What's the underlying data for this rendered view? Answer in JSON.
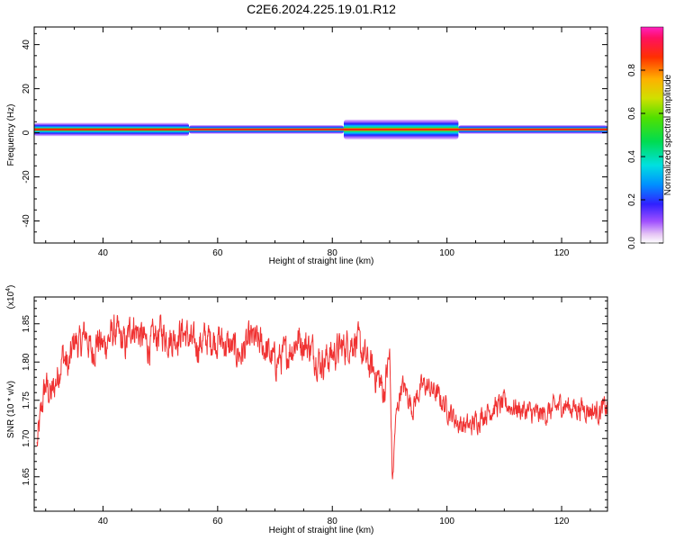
{
  "title": "C2E6.2024.225.19.01.R12",
  "chart_data": [
    {
      "type": "heatmap",
      "xlabel": "Height of straight line (km)",
      "ylabel": "Frequency (Hz)",
      "xlim": [
        28,
        128
      ],
      "ylim": [
        -50,
        48
      ],
      "xticks": [
        40,
        60,
        80,
        100,
        120
      ],
      "yticks": [
        -40,
        -20,
        0,
        20,
        40
      ],
      "colorbar": {
        "label": "Normalized spectral amplitude",
        "range": [
          0,
          1
        ],
        "ticks": [
          "0.0",
          "0.2",
          "0.4",
          "0.6",
          "0.8"
        ],
        "ticks_values": [
          0.0,
          0.2,
          0.4,
          0.6,
          0.8
        ]
      },
      "band": {
        "center_hz": 1.5,
        "description_segments": [
          {
            "from": 28,
            "to": 55,
            "halfwidth_hz": 3
          },
          {
            "from": 55,
            "to": 82,
            "halfwidth_hz": 2
          },
          {
            "from": 82,
            "to": 102,
            "halfwidth_hz": 4.5
          },
          {
            "from": 102,
            "to": 128,
            "halfwidth_hz": 2
          }
        ]
      }
    },
    {
      "type": "line",
      "xlabel": "Height of straight line (km)",
      "ylabel": "SNR (10 * v/v)",
      "y_multiplier": "(x10⁴)",
      "y_multiplier_base": "(x10",
      "y_multiplier_exp": "4",
      "y_multiplier_close": ")",
      "xlim": [
        28,
        128
      ],
      "ylim": [
        1.605,
        1.885
      ],
      "xticks": [
        40,
        60,
        80,
        100,
        120
      ],
      "yticks": [
        1.65,
        1.7,
        1.75,
        1.8,
        1.85
      ],
      "yticklabels": [
        "1.65",
        "1.70",
        "1.75",
        "1.80",
        "1.85"
      ],
      "line_color": "#f03232",
      "x": [
        28.5,
        29.5,
        30,
        31,
        32,
        33,
        34,
        35,
        36,
        37,
        38,
        39,
        40,
        41,
        42,
        43,
        44,
        45,
        46,
        48,
        50,
        52,
        54,
        56,
        58,
        60,
        62,
        64,
        66,
        68,
        70,
        72,
        74,
        76,
        78,
        80,
        82,
        84,
        86,
        88,
        89,
        90,
        90.5,
        91,
        92,
        93,
        94,
        95,
        96,
        98,
        100,
        102,
        104,
        106,
        108,
        110,
        112,
        114,
        116,
        118,
        120,
        122,
        124,
        126,
        128
      ],
      "y": [
        1.69,
        1.75,
        1.77,
        1.755,
        1.78,
        1.81,
        1.79,
        1.83,
        1.82,
        1.84,
        1.81,
        1.83,
        1.82,
        1.83,
        1.84,
        1.83,
        1.82,
        1.85,
        1.84,
        1.82,
        1.84,
        1.83,
        1.84,
        1.82,
        1.83,
        1.83,
        1.82,
        1.81,
        1.83,
        1.82,
        1.8,
        1.81,
        1.83,
        1.82,
        1.8,
        1.81,
        1.82,
        1.83,
        1.8,
        1.78,
        1.76,
        1.81,
        1.64,
        1.72,
        1.77,
        1.76,
        1.74,
        1.76,
        1.77,
        1.76,
        1.74,
        1.72,
        1.715,
        1.73,
        1.74,
        1.745,
        1.74,
        1.735,
        1.73,
        1.735,
        1.745,
        1.74,
        1.74,
        1.735,
        1.74
      ]
    }
  ]
}
